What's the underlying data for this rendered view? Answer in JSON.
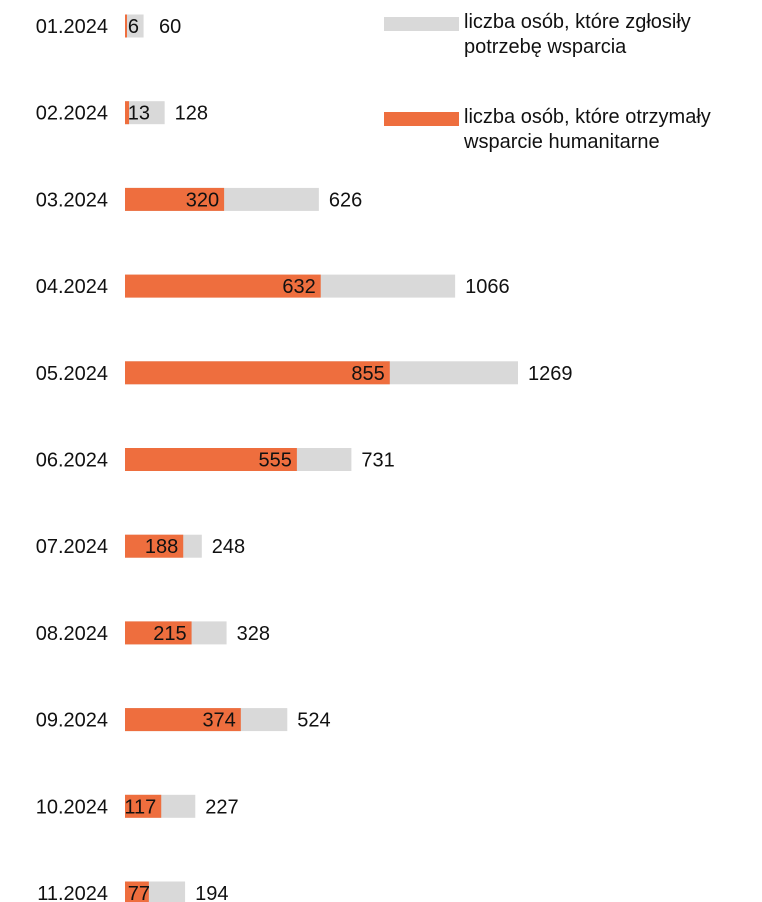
{
  "chart_data": {
    "type": "bar",
    "orientation": "horizontal",
    "categories": [
      "01.2024",
      "02.2024",
      "03.2024",
      "04.2024",
      "05.2024",
      "06.2024",
      "07.2024",
      "08.2024",
      "09.2024",
      "10.2024",
      "11.2024"
    ],
    "series": [
      {
        "name": "liczba osób, które zgłosiły potrzebę wsparcia",
        "values": [
          60,
          128,
          626,
          1066,
          1269,
          731,
          248,
          328,
          524,
          227,
          194
        ]
      },
      {
        "name": "liczba osób, które otrzymały wsparcie humanitarne",
        "values": [
          6,
          13,
          320,
          632,
          855,
          555,
          188,
          215,
          374,
          117,
          77
        ]
      }
    ],
    "legend": {
      "position": "top-right",
      "entries": [
        {
          "text": "liczba osób, które zgłosiły potrzebę wsparcia"
        },
        {
          "text": "liczba osób, które otrzymały wsparcie humanitarne"
        }
      ]
    },
    "grid": false,
    "title": "",
    "xlabel": "",
    "ylabel": "",
    "xlim": [
      0,
      1269
    ]
  },
  "colors": {
    "requested": "#d9d9d9",
    "received": "#ee6e3e",
    "text": "#111111"
  }
}
